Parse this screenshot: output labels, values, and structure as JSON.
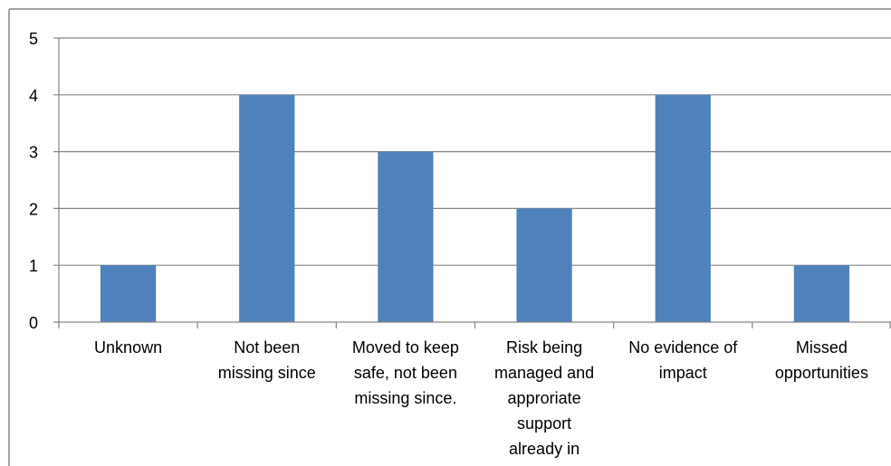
{
  "chart_data": {
    "type": "bar",
    "categories": [
      "Unknown",
      "Not been missing since",
      "Moved to keep safe, not been missing since.",
      "Risk being managed and approriate support already in",
      "No evidence of impact",
      "Missed opportunities"
    ],
    "category_label_lines": [
      [
        "Unknown"
      ],
      [
        "Not been",
        "missing since"
      ],
      [
        "Moved to keep",
        "safe, not been",
        "missing since."
      ],
      [
        "Risk being",
        "managed and",
        "approriate",
        "support",
        "already in"
      ],
      [
        "No evidence of",
        "impact"
      ],
      [
        "Missed",
        "opportunities"
      ]
    ],
    "values": [
      1,
      4,
      3,
      2,
      4,
      1
    ],
    "ylim": [
      0,
      5
    ],
    "yticks": [
      "0",
      "1",
      "2",
      "3",
      "4",
      "5"
    ],
    "grid": true,
    "legend": "none",
    "colors": {
      "bar": "#4f81bd",
      "gridline": "#868686",
      "axis": "#868686",
      "border": "#868686"
    }
  }
}
